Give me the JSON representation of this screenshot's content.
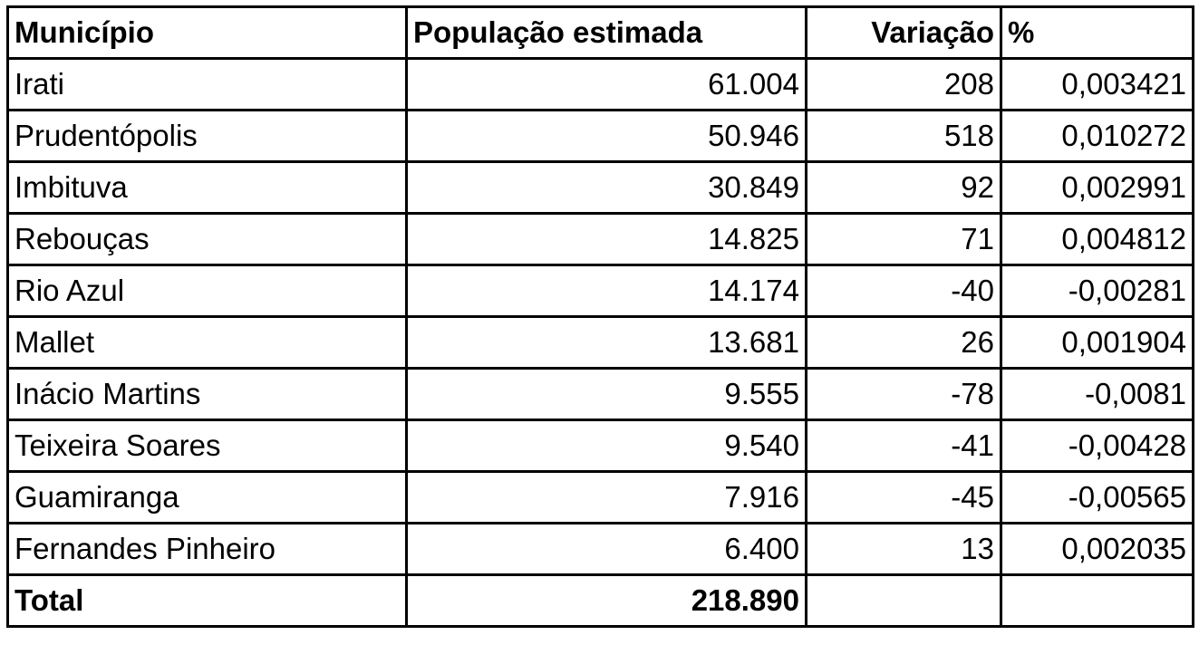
{
  "table": {
    "header": [
      "Município",
      "População estimada",
      "Variação",
      "%"
    ],
    "rows": [
      [
        "Irati",
        "61.004",
        "208",
        "0,003421"
      ],
      [
        "Prudentópolis",
        "50.946",
        "518",
        "0,010272"
      ],
      [
        "Imbituva",
        "30.849",
        "92",
        "0,002991"
      ],
      [
        "Rebouças",
        "14.825",
        "71",
        "0,004812"
      ],
      [
        "Rio Azul",
        "14.174",
        "-40",
        "-0,00281"
      ],
      [
        "Mallet",
        "13.681",
        "26",
        "0,001904"
      ],
      [
        "Inácio Martins",
        "9.555",
        "-78",
        "-0,0081"
      ],
      [
        "Teixeira Soares",
        "9.540",
        "-41",
        "-0,00428"
      ],
      [
        "Guamiranga",
        "7.916",
        "-45",
        "-0,00565"
      ],
      [
        "Fernandes Pinheiro",
        "6.400",
        "13",
        "0,002035"
      ]
    ],
    "total": {
      "label": "Total",
      "population": "218.890"
    }
  }
}
